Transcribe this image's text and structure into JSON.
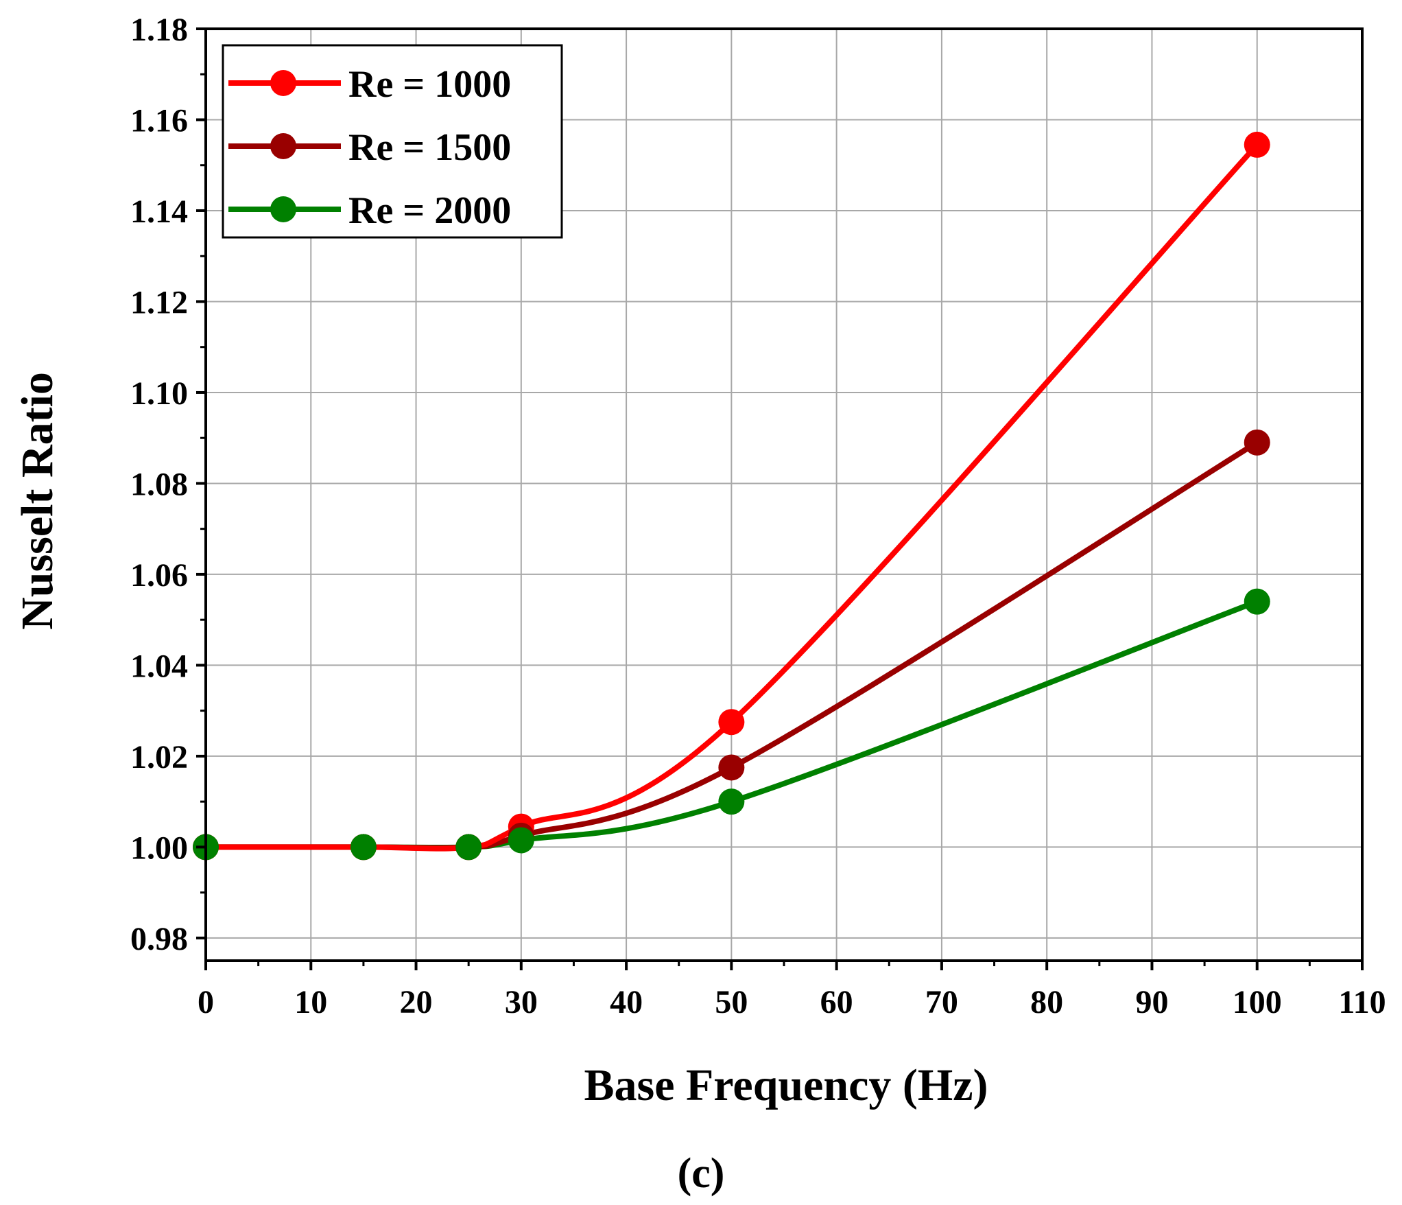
{
  "chart_data": {
    "type": "line",
    "title": "",
    "xlabel": "Base Frequency (Hz)",
    "ylabel": "Nusselt Ratio",
    "caption": "(c)",
    "xlim": [
      0,
      110
    ],
    "ylim": [
      0.975,
      1.18
    ],
    "xticks": [
      0,
      10,
      20,
      30,
      40,
      50,
      60,
      70,
      80,
      90,
      100,
      110
    ],
    "yticks": [
      0.98,
      1.0,
      1.02,
      1.04,
      1.06,
      1.08,
      1.1,
      1.12,
      1.14,
      1.16,
      1.18
    ],
    "xtick_labels": [
      "0",
      "10",
      "20",
      "30",
      "40",
      "50",
      "60",
      "70",
      "80",
      "90",
      "100",
      "110"
    ],
    "ytick_labels": [
      "0.98",
      "1.00",
      "1.02",
      "1.04",
      "1.06",
      "1.08",
      "1.10",
      "1.12",
      "1.14",
      "1.16",
      "1.18"
    ],
    "grid": true,
    "legend_position": "top-left",
    "series": [
      {
        "name": "Re = 1000",
        "color": "#ff0000",
        "x": [
          0,
          15,
          25,
          30,
          50,
          100
        ],
        "values": [
          1.0,
          1.0,
          1.0,
          1.0045,
          1.0275,
          1.1545
        ]
      },
      {
        "name": "Re = 1500",
        "color": "#990000",
        "x": [
          0,
          15,
          25,
          30,
          50,
          100
        ],
        "values": [
          1.0,
          1.0,
          1.0,
          1.0025,
          1.0175,
          1.089
        ]
      },
      {
        "name": "Re = 2000",
        "color": "#008000",
        "x": [
          0,
          15,
          25,
          30,
          50,
          100
        ],
        "values": [
          1.0,
          1.0,
          1.0,
          1.0015,
          1.01,
          1.054
        ]
      }
    ]
  }
}
